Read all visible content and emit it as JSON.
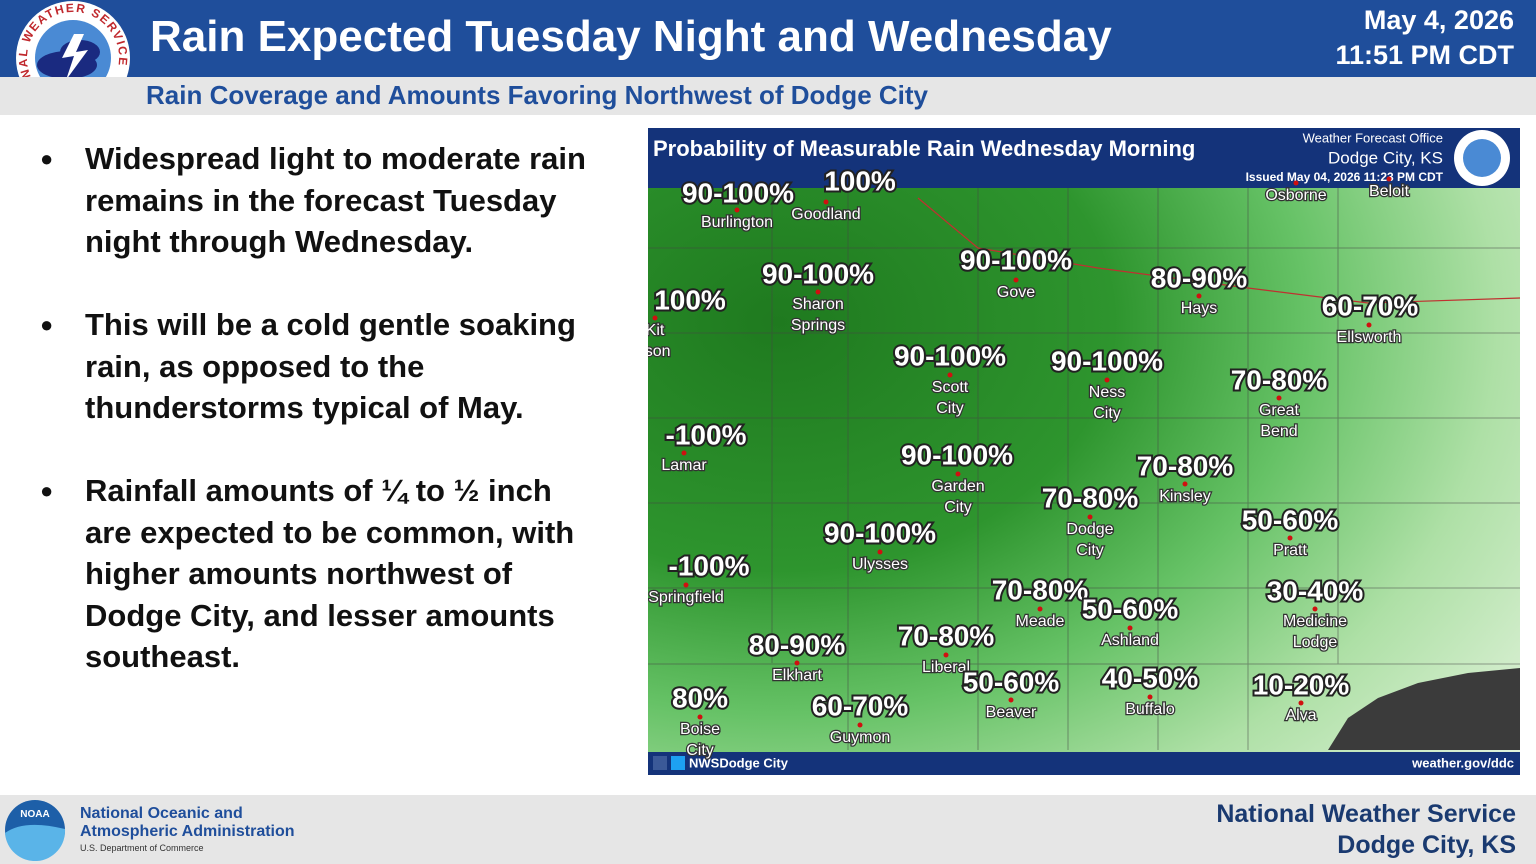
{
  "header": {
    "title": "Rain Expected Tuesday Night and Wednesday",
    "date": "May 4, 2026",
    "time": "11:51 PM CDT",
    "subtitle": "Rain Coverage and Amounts Favoring Northwest of Dodge City",
    "logo_text": "NATIONAL WEATHER SERVICE"
  },
  "bullets": [
    "Widespread light to moderate rain remains in the forecast Tuesday night through Wednesday.",
    "This will be a cold gentle soaking rain, as opposed to the thunderstorms typical of May.",
    "Rainfall amounts of ¼ to ½ inch are expected to be common, with higher amounts northwest of Dodge City, and lesser amounts southeast."
  ],
  "map": {
    "title": "Probability of Measurable Rain Wednesday Morning",
    "office_label": "Weather Forecast Office",
    "office": "Dodge City, KS",
    "issued": "Issued May 04, 2026 11:23 PM CDT",
    "social": "NWSDodge City",
    "url": "weather.gov/ddc",
    "probabilities": [
      "90-100%",
      "100%",
      "90-100%",
      "90-100%",
      "80-90%",
      "60-70%",
      "100%",
      "90-100%",
      "90-100%",
      "70-80%",
      "-100%",
      "90-100%",
      "70-80%",
      "70-80%",
      "50-60%",
      "90-100%",
      "-100%",
      "70-80%",
      "50-60%",
      "30-40%",
      "80-90%",
      "70-80%",
      "80%",
      "60-70%",
      "50-60%",
      "40-50%",
      "10-20%"
    ],
    "cities": [
      [
        "Burlington"
      ],
      [
        "Goodland"
      ],
      [
        "Osborne"
      ],
      [
        "Beloit"
      ],
      [
        "Sharon",
        "Springs"
      ],
      [
        "Gove"
      ],
      [
        "Hays"
      ],
      [
        "Ellsworth"
      ],
      [
        "Kit",
        "rson"
      ],
      [
        "Scott",
        "City"
      ],
      [
        "Ness",
        "City"
      ],
      [
        "Great",
        "Bend"
      ],
      [
        "Lamar"
      ],
      [
        "Garden",
        "City"
      ],
      [
        "Kinsley"
      ],
      [
        "Dodge",
        "City"
      ],
      [
        "Pratt"
      ],
      [
        "Ulysses"
      ],
      [
        "Springfield"
      ],
      [
        "Meade"
      ],
      [
        "Ashland"
      ],
      [
        "Medicine",
        "Lodge"
      ],
      [
        "Elkhart"
      ],
      [
        "Liberal"
      ],
      [
        "Boise",
        "City"
      ],
      [
        "Guymon"
      ],
      [
        "Beaver"
      ],
      [
        "Buffalo"
      ],
      [
        "Alva"
      ]
    ]
  },
  "footer": {
    "noaa_line1": "National Oceanic and",
    "noaa_line2": "Atmospheric Administration",
    "noaa_line3": "U.S. Department of Commerce",
    "noaa_logo": "NOAA",
    "nws_line1": "National Weather Service",
    "nws_line2": "Dodge City, KS"
  }
}
